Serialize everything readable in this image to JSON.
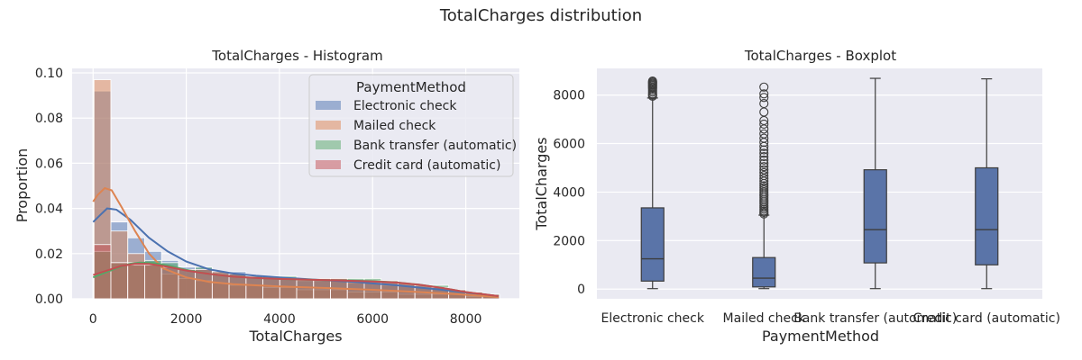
{
  "figure": {
    "suptitle": "TotalCharges distribution"
  },
  "colors": {
    "electronic_check": "#4c72b0",
    "mailed_check": "#dd8452",
    "bank_transfer": "#55a868",
    "credit_card": "#c44e52",
    "box_fill": "#5a74a8",
    "plot_background": "#eaeaf2",
    "grid": "#ffffff",
    "whisker": "#3d3d3d"
  },
  "chart_data": [
    {
      "type": "bar",
      "subtype": "histogram-with-kde",
      "title": "TotalCharges - Histogram",
      "xlabel": "TotalCharges",
      "ylabel": "Proportion",
      "xlim": [
        -450,
        9150
      ],
      "ylim": [
        0,
        0.102
      ],
      "xticks": [
        0,
        2000,
        4000,
        6000,
        8000
      ],
      "xtick_labels": [
        "0",
        "2000",
        "4000",
        "6000",
        "8000"
      ],
      "yticks": [
        0,
        0.02,
        0.04,
        0.06,
        0.08,
        0.1
      ],
      "ytick_labels": [
        "0.00",
        "0.02",
        "0.04",
        "0.06",
        "0.08",
        "0.10"
      ],
      "grid": true,
      "legend": {
        "title": "PaymentMethod",
        "position": "top-right",
        "entries": [
          "Electronic check",
          "Mailed check",
          "Bank transfer (automatic)",
          "Credit card (automatic)"
        ]
      },
      "bin_edges": [
        18.8,
        381.4,
        744.0,
        1106.6,
        1469.2,
        1831.8,
        2194.4,
        2557.0,
        2919.6,
        3282.2,
        3644.8,
        4007.4,
        4370.0,
        4732.6,
        5095.2,
        5457.8,
        5820.4,
        6183.0,
        6545.6,
        6908.2,
        7270.8,
        7633.4,
        7996.0,
        8358.6,
        8721.2
      ],
      "series": [
        {
          "name": "Electronic check",
          "color_key": "electronic_check",
          "values": [
            0.092,
            0.034,
            0.027,
            0.021,
            0.017,
            0.014,
            0.014,
            0.011,
            0.012,
            0.01,
            0.009,
            0.009,
            0.008,
            0.008,
            0.008,
            0.007,
            0.007,
            0.006,
            0.006,
            0.005,
            0.005,
            0.004,
            0.003,
            0.002
          ],
          "kde": [
            [
              0,
              0.034
            ],
            [
              150,
              0.037
            ],
            [
              300,
              0.04
            ],
            [
              500,
              0.0395
            ],
            [
              800,
              0.035
            ],
            [
              1200,
              0.027
            ],
            [
              1600,
              0.021
            ],
            [
              2000,
              0.0165
            ],
            [
              2500,
              0.013
            ],
            [
              3000,
              0.0112
            ],
            [
              3500,
              0.0102
            ],
            [
              4000,
              0.0095
            ],
            [
              4500,
              0.0088
            ],
            [
              5000,
              0.0082
            ],
            [
              5500,
              0.0076
            ],
            [
              6000,
              0.0068
            ],
            [
              6500,
              0.006
            ],
            [
              7000,
              0.005
            ],
            [
              7500,
              0.004
            ],
            [
              8000,
              0.0028
            ],
            [
              8700,
              0.0012
            ]
          ]
        },
        {
          "name": "Mailed check",
          "color_key": "mailed_check",
          "values": [
            0.097,
            0.03,
            0.02,
            0.015,
            0.011,
            0.009,
            0.008,
            0.007,
            0.006,
            0.006,
            0.005,
            0.005,
            0.004,
            0.004,
            0.004,
            0.003,
            0.003,
            0.003,
            0.002,
            0.002,
            0.002,
            0.002,
            0.001,
            0.001
          ],
          "kde": [
            [
              0,
              0.043
            ],
            [
              100,
              0.046
            ],
            [
              250,
              0.049
            ],
            [
              400,
              0.048
            ],
            [
              600,
              0.041
            ],
            [
              900,
              0.03
            ],
            [
              1200,
              0.02
            ],
            [
              1500,
              0.0135
            ],
            [
              2000,
              0.0095
            ],
            [
              2500,
              0.0075
            ],
            [
              3000,
              0.0065
            ],
            [
              4000,
              0.0055
            ],
            [
              5000,
              0.0048
            ],
            [
              6000,
              0.004
            ],
            [
              7000,
              0.003
            ],
            [
              8000,
              0.0018
            ],
            [
              8700,
              0.0008
            ]
          ]
        },
        {
          "name": "Bank transfer (automatic)",
          "color_key": "bank_transfer",
          "values": [
            0.021,
            0.016,
            0.016,
            0.017,
            0.016,
            0.013,
            0.014,
            0.012,
            0.011,
            0.01,
            0.01,
            0.01,
            0.009,
            0.009,
            0.009,
            0.009,
            0.009,
            0.008,
            0.007,
            0.006,
            0.006,
            0.004,
            0.003,
            0.002
          ],
          "kde": [
            [
              0,
              0.0095
            ],
            [
              250,
              0.0115
            ],
            [
              500,
              0.0135
            ],
            [
              800,
              0.0155
            ],
            [
              1000,
              0.016
            ],
            [
              1300,
              0.0158
            ],
            [
              1700,
              0.0143
            ],
            [
              2000,
              0.0128
            ],
            [
              2500,
              0.011
            ],
            [
              3000,
              0.0098
            ],
            [
              3500,
              0.0092
            ],
            [
              4000,
              0.0088
            ],
            [
              5000,
              0.0083
            ],
            [
              6000,
              0.0078
            ],
            [
              6500,
              0.0073
            ],
            [
              7000,
              0.0063
            ],
            [
              7500,
              0.0048
            ],
            [
              8000,
              0.003
            ],
            [
              8700,
              0.0012
            ]
          ]
        },
        {
          "name": "Credit card (automatic)",
          "color_key": "credit_card",
          "values": [
            0.024,
            0.016,
            0.015,
            0.015,
            0.014,
            0.013,
            0.013,
            0.012,
            0.011,
            0.01,
            0.01,
            0.009,
            0.009,
            0.009,
            0.009,
            0.008,
            0.008,
            0.008,
            0.007,
            0.006,
            0.005,
            0.004,
            0.003,
            0.002
          ],
          "kde": [
            [
              0,
              0.0105
            ],
            [
              300,
              0.0125
            ],
            [
              600,
              0.0145
            ],
            [
              900,
              0.0155
            ],
            [
              1200,
              0.0154
            ],
            [
              1600,
              0.0142
            ],
            [
              2000,
              0.0125
            ],
            [
              2500,
              0.011
            ],
            [
              3000,
              0.0098
            ],
            [
              3500,
              0.0092
            ],
            [
              4000,
              0.0088
            ],
            [
              5000,
              0.0083
            ],
            [
              6000,
              0.0077
            ],
            [
              6500,
              0.0072
            ],
            [
              7000,
              0.0062
            ],
            [
              7500,
              0.0048
            ],
            [
              8000,
              0.003
            ],
            [
              8700,
              0.0012
            ]
          ]
        }
      ]
    },
    {
      "type": "boxplot",
      "title": "TotalCharges - Boxplot",
      "xlabel": "PaymentMethod",
      "ylabel": "TotalCharges",
      "ylim": [
        -400,
        9100
      ],
      "yticks": [
        0,
        2000,
        4000,
        6000,
        8000
      ],
      "ytick_labels": [
        "0",
        "2000",
        "4000",
        "6000",
        "8000"
      ],
      "grid": true,
      "categories": [
        "Electronic check",
        "Mailed check",
        "Bank transfer (automatic)",
        "Credit card (automatic)"
      ],
      "boxes": [
        {
          "category": "Electronic check",
          "min": 18.8,
          "q1": 330,
          "median": 1250,
          "q3": 3350,
          "max": 7880,
          "outliers": [
            7950,
            8000,
            8050,
            8120,
            8180,
            8250,
            8300,
            8330,
            8380,
            8420,
            8460,
            8500,
            8540,
            8580
          ]
        },
        {
          "category": "Mailed check",
          "min": 18.8,
          "q1": 90,
          "median": 450,
          "q3": 1300,
          "max": 3050,
          "outliers": [
            3100,
            3160,
            3220,
            3290,
            3360,
            3440,
            3520,
            3600,
            3680,
            3760,
            3840,
            3920,
            4000,
            4090,
            4180,
            4260,
            4350,
            4450,
            4560,
            4680,
            4800,
            4920,
            5050,
            5180,
            5320,
            5460,
            5600,
            5740,
            5880,
            6050,
            6220,
            6400,
            6600,
            6800,
            6950,
            7300,
            7650,
            7900,
            8050,
            8330
          ]
        },
        {
          "category": "Bank transfer (automatic)",
          "min": 18.8,
          "q1": 1080,
          "median": 2450,
          "q3": 4920,
          "max": 8690,
          "outliers": []
        },
        {
          "category": "Credit card (automatic)",
          "min": 18.8,
          "q1": 1000,
          "median": 2450,
          "q3": 5000,
          "max": 8670,
          "outliers": []
        }
      ]
    }
  ]
}
